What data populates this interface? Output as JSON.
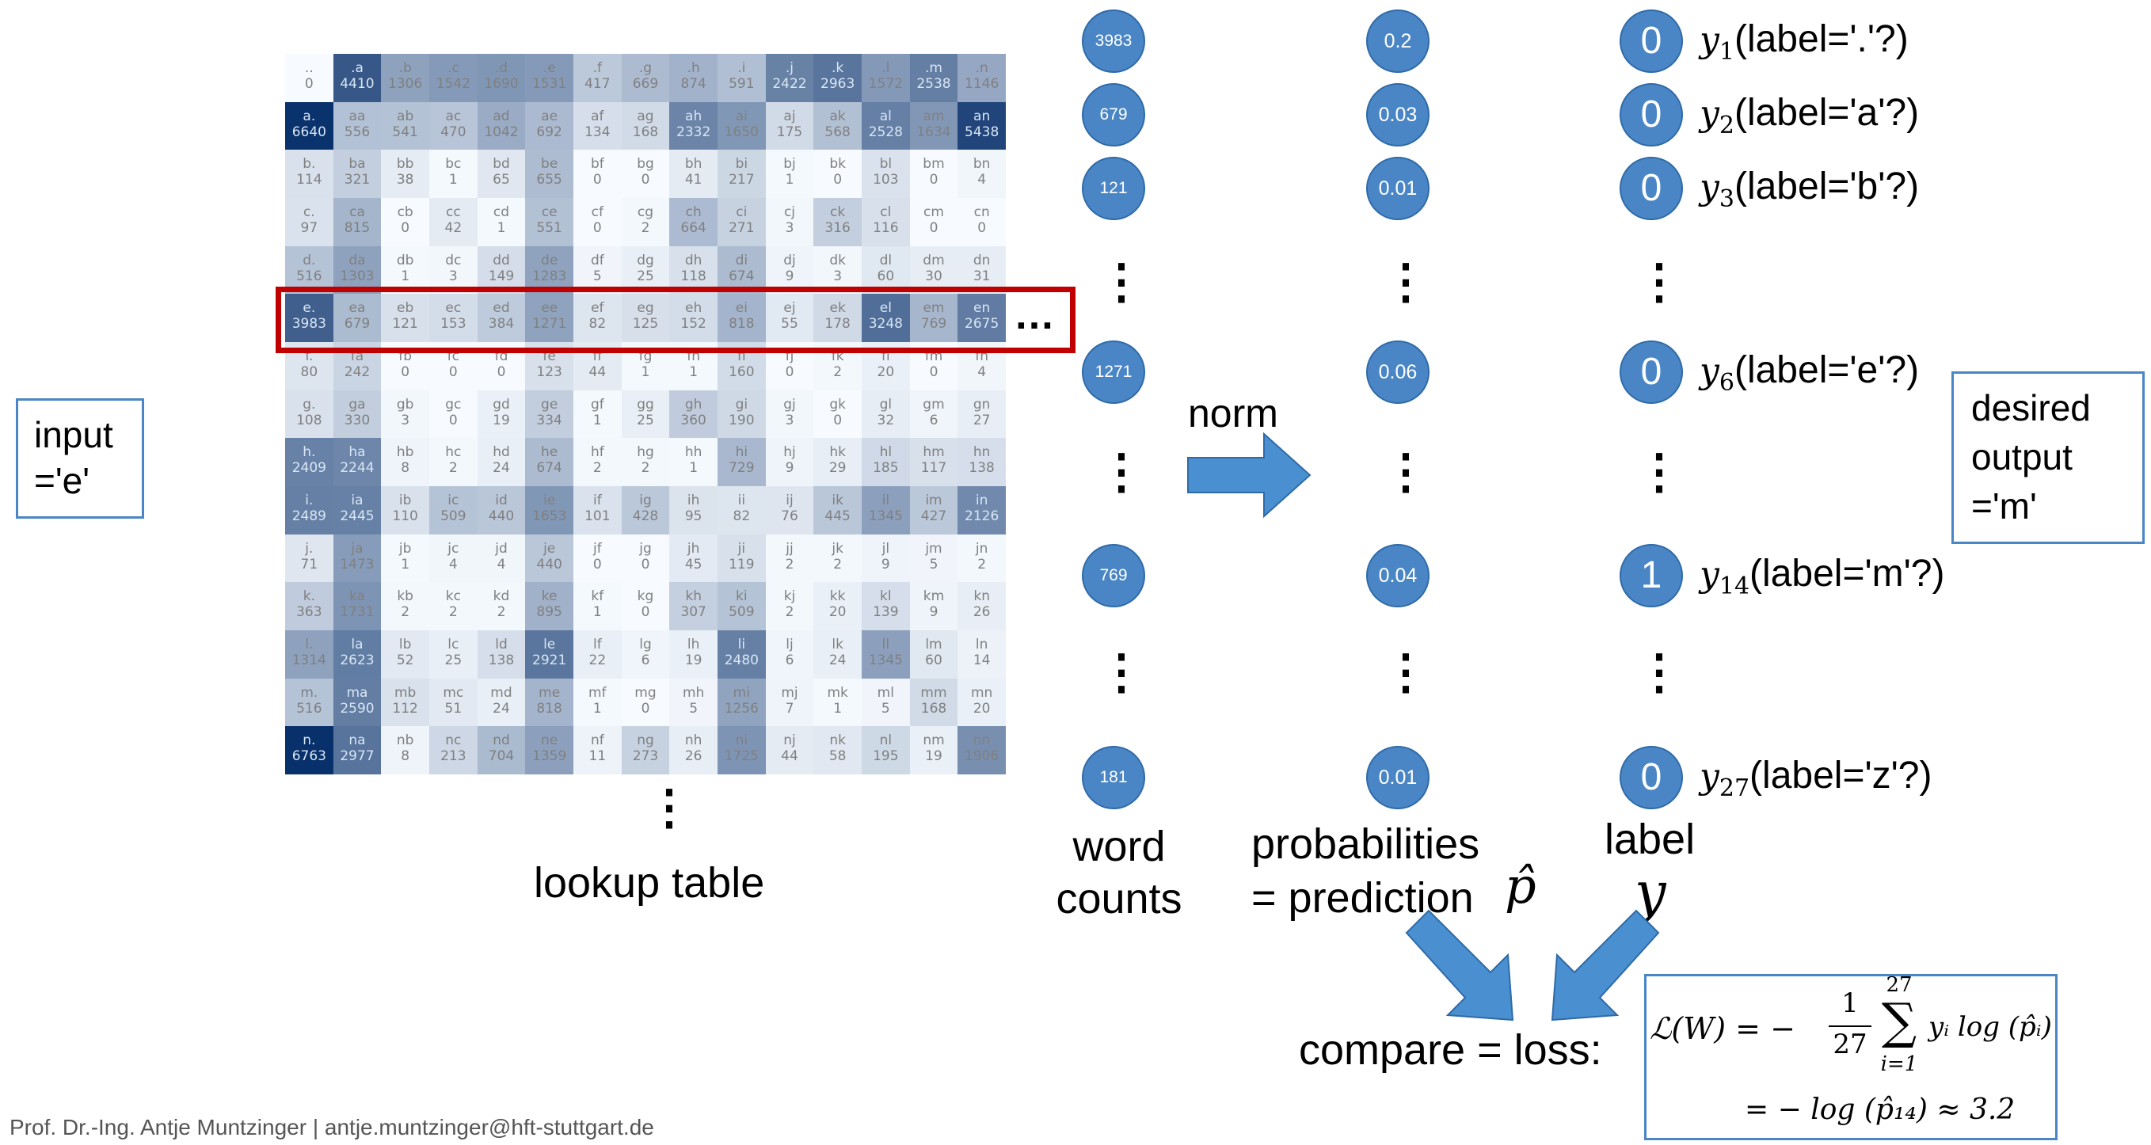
{
  "grid": {
    "rows": [
      {
        "labels": [
          "..",
          ".a",
          ".b",
          ".c",
          ".d",
          ".e",
          ".f",
          ".g",
          ".h",
          ".i",
          ".j",
          ".k",
          ".l",
          ".m",
          ".n"
        ],
        "values": [
          0,
          4410,
          1306,
          1542,
          1690,
          1531,
          417,
          669,
          874,
          591,
          2422,
          2963,
          1572,
          2538,
          1146
        ]
      },
      {
        "labels": [
          "a.",
          "aa",
          "ab",
          "ac",
          "ad",
          "ae",
          "af",
          "ag",
          "ah",
          "ai",
          "aj",
          "ak",
          "al",
          "am",
          "an"
        ],
        "values": [
          6640,
          556,
          541,
          470,
          1042,
          692,
          134,
          168,
          2332,
          1650,
          175,
          568,
          2528,
          1634,
          5438
        ]
      },
      {
        "labels": [
          "b.",
          "ba",
          "bb",
          "bc",
          "bd",
          "be",
          "bf",
          "bg",
          "bh",
          "bi",
          "bj",
          "bk",
          "bl",
          "bm",
          "bn"
        ],
        "values": [
          114,
          321,
          38,
          1,
          65,
          655,
          0,
          0,
          41,
          217,
          1,
          0,
          103,
          0,
          4
        ]
      },
      {
        "labels": [
          "c.",
          "ca",
          "cb",
          "cc",
          "cd",
          "ce",
          "cf",
          "cg",
          "ch",
          "ci",
          "cj",
          "ck",
          "cl",
          "cm",
          "cn"
        ],
        "values": [
          97,
          815,
          0,
          42,
          1,
          551,
          0,
          2,
          664,
          271,
          3,
          316,
          116,
          0,
          0
        ]
      },
      {
        "labels": [
          "d.",
          "da",
          "db",
          "dc",
          "dd",
          "de",
          "df",
          "dg",
          "dh",
          "di",
          "dj",
          "dk",
          "dl",
          "dm",
          "dn"
        ],
        "values": [
          516,
          1303,
          1,
          3,
          149,
          1283,
          5,
          25,
          118,
          674,
          9,
          3,
          60,
          30,
          31
        ]
      },
      {
        "labels": [
          "e.",
          "ea",
          "eb",
          "ec",
          "ed",
          "ee",
          "ef",
          "eg",
          "eh",
          "ei",
          "ej",
          "ek",
          "el",
          "em",
          "en"
        ],
        "values": [
          3983,
          679,
          121,
          153,
          384,
          1271,
          82,
          125,
          152,
          818,
          55,
          178,
          3248,
          769,
          2675
        ]
      },
      {
        "labels": [
          "f.",
          "fa",
          "fb",
          "fc",
          "fd",
          "fe",
          "ff",
          "fg",
          "fh",
          "fi",
          "fj",
          "fk",
          "fl",
          "fm",
          "fn"
        ],
        "values": [
          80,
          242,
          0,
          0,
          0,
          123,
          44,
          1,
          1,
          160,
          0,
          2,
          20,
          0,
          4
        ]
      },
      {
        "labels": [
          "g.",
          "ga",
          "gb",
          "gc",
          "gd",
          "ge",
          "gf",
          "gg",
          "gh",
          "gi",
          "gj",
          "gk",
          "gl",
          "gm",
          "gn"
        ],
        "values": [
          108,
          330,
          3,
          0,
          19,
          334,
          1,
          25,
          360,
          190,
          3,
          0,
          32,
          6,
          27
        ]
      },
      {
        "labels": [
          "h.",
          "ha",
          "hb",
          "hc",
          "hd",
          "he",
          "hf",
          "hg",
          "hh",
          "hi",
          "hj",
          "hk",
          "hl",
          "hm",
          "hn"
        ],
        "values": [
          2409,
          2244,
          8,
          2,
          24,
          674,
          2,
          2,
          1,
          729,
          9,
          29,
          185,
          117,
          138
        ]
      },
      {
        "labels": [
          "i.",
          "ia",
          "ib",
          "ic",
          "id",
          "ie",
          "if",
          "ig",
          "ih",
          "ii",
          "ij",
          "ik",
          "il",
          "im",
          "in"
        ],
        "values": [
          2489,
          2445,
          110,
          509,
          440,
          1653,
          101,
          428,
          95,
          82,
          76,
          445,
          1345,
          427,
          2126
        ]
      },
      {
        "labels": [
          "j.",
          "ja",
          "jb",
          "jc",
          "jd",
          "je",
          "jf",
          "jg",
          "jh",
          "ji",
          "jj",
          "jk",
          "jl",
          "jm",
          "jn"
        ],
        "values": [
          71,
          1473,
          1,
          4,
          4,
          440,
          0,
          0,
          45,
          119,
          2,
          2,
          9,
          5,
          2
        ]
      },
      {
        "labels": [
          "k.",
          "ka",
          "kb",
          "kc",
          "kd",
          "ke",
          "kf",
          "kg",
          "kh",
          "ki",
          "kj",
          "kk",
          "kl",
          "km",
          "kn"
        ],
        "values": [
          363,
          1731,
          2,
          2,
          2,
          895,
          1,
          0,
          307,
          509,
          2,
          20,
          139,
          9,
          26
        ]
      },
      {
        "labels": [
          "l.",
          "la",
          "lb",
          "lc",
          "ld",
          "le",
          "lf",
          "lg",
          "lh",
          "li",
          "lj",
          "lk",
          "ll",
          "lm",
          "ln"
        ],
        "values": [
          1314,
          2623,
          52,
          25,
          138,
          2921,
          22,
          6,
          19,
          2480,
          6,
          24,
          1345,
          60,
          14
        ]
      },
      {
        "labels": [
          "m.",
          "ma",
          "mb",
          "mc",
          "md",
          "me",
          "mf",
          "mg",
          "mh",
          "mi",
          "mj",
          "mk",
          "ml",
          "mm",
          "mn"
        ],
        "values": [
          516,
          2590,
          112,
          51,
          24,
          818,
          1,
          0,
          5,
          1256,
          7,
          1,
          5,
          168,
          20
        ]
      },
      {
        "labels": [
          "n.",
          "na",
          "nb",
          "nc",
          "nd",
          "ne",
          "nf",
          "ng",
          "nh",
          "ni",
          "nj",
          "nk",
          "nl",
          "nm",
          "nn"
        ],
        "values": [
          6763,
          2977,
          8,
          213,
          704,
          1359,
          11,
          273,
          26,
          1725,
          44,
          58,
          195,
          19,
          1906
        ]
      }
    ],
    "colors": {
      "low": "#f7fbff",
      "high": "#08306b"
    },
    "row_ellipsis": "…",
    "col_ellipsis": "⋮"
  },
  "texts": {
    "input": "input\n='e'",
    "lookup_table": "lookup table",
    "norm": "norm",
    "word_counts": "word\ncounts",
    "probabilities": "probabilities\n= prediction",
    "p_hat": "p̂",
    "label": "label",
    "y_letter": "y",
    "desired_output": "desired\noutput\n='m'",
    "compare": "compare = loss:",
    "footer": "Prof. Dr.-Ing. Antje Muntzinger | antje.muntzinger@hft-stuttgart.de",
    "formula": {
      "lhs": "ℒ(W) = −",
      "frac_num": "1",
      "frac_den": "27",
      "sum_top": "27",
      "sum_bottom": "i=1",
      "sum_symbol": "∑",
      "term": "yᵢ log (p̂ᵢ)",
      "line2": "= − log (p̂₁₄) ≈ 3.2"
    }
  },
  "columns": {
    "counts": [
      "3983",
      "679",
      "121",
      "⋮",
      "1271",
      "⋮",
      "769",
      "⋮",
      "181"
    ],
    "probs": [
      "0.2",
      "0.03",
      "0.01",
      "⋮",
      "0.06",
      "⋮",
      "0.04",
      "⋮",
      "0.01"
    ],
    "labels": [
      "0",
      "0",
      "0",
      "⋮",
      "0",
      "⋮",
      "1",
      "⋮",
      "0"
    ],
    "ylabels": [
      {
        "sub": "1",
        "text": "(label='.'?)"
      },
      {
        "sub": "2",
        "text": "(label='a'?)"
      },
      {
        "sub": "3",
        "text": "(label='b'?)"
      },
      null,
      {
        "sub": "6",
        "text": "(label='e'?)"
      },
      null,
      {
        "sub": "14",
        "text": "(label='m'?)"
      },
      null,
      {
        "sub": "27",
        "text": "(label='z'?)"
      }
    ]
  }
}
